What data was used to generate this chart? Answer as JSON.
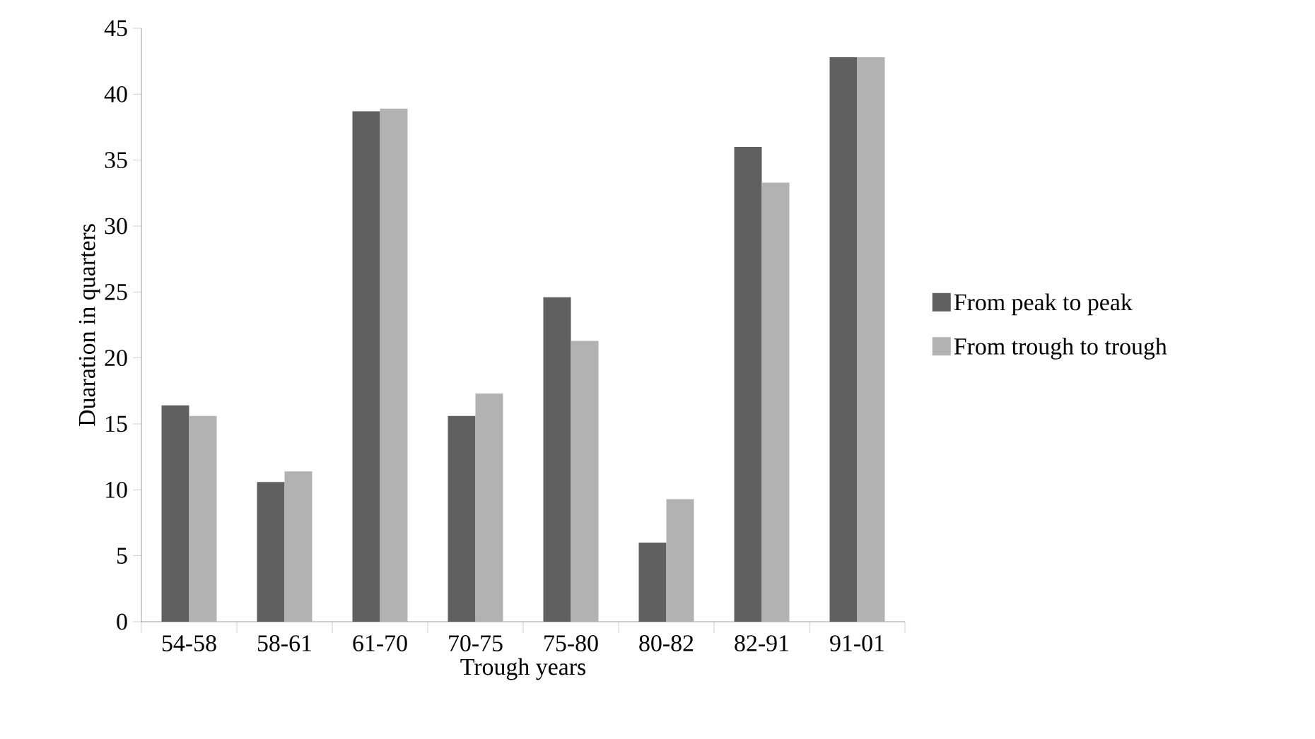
{
  "chart_data": {
    "type": "bar",
    "xlabel": "Trough years",
    "ylabel": "Duaration in quarters",
    "categories": [
      "54-58",
      "58-61",
      "61-70",
      "70-75",
      "75-80",
      "80-82",
      "82-91",
      "91-01"
    ],
    "series": [
      {
        "name": "From peak to peak",
        "color": "#606060",
        "values": [
          16.4,
          10.6,
          38.7,
          15.6,
          24.6,
          6.0,
          36.0,
          42.8
        ]
      },
      {
        "name": "From trough to trough",
        "color": "#b2b2b2",
        "values": [
          15.6,
          11.4,
          38.9,
          17.3,
          21.3,
          9.3,
          33.3,
          42.8
        ]
      }
    ],
    "ylim": [
      0,
      45
    ],
    "yticks": [
      0,
      5,
      10,
      15,
      20,
      25,
      30,
      35,
      40,
      45
    ],
    "grid": false,
    "legend": "right"
  }
}
